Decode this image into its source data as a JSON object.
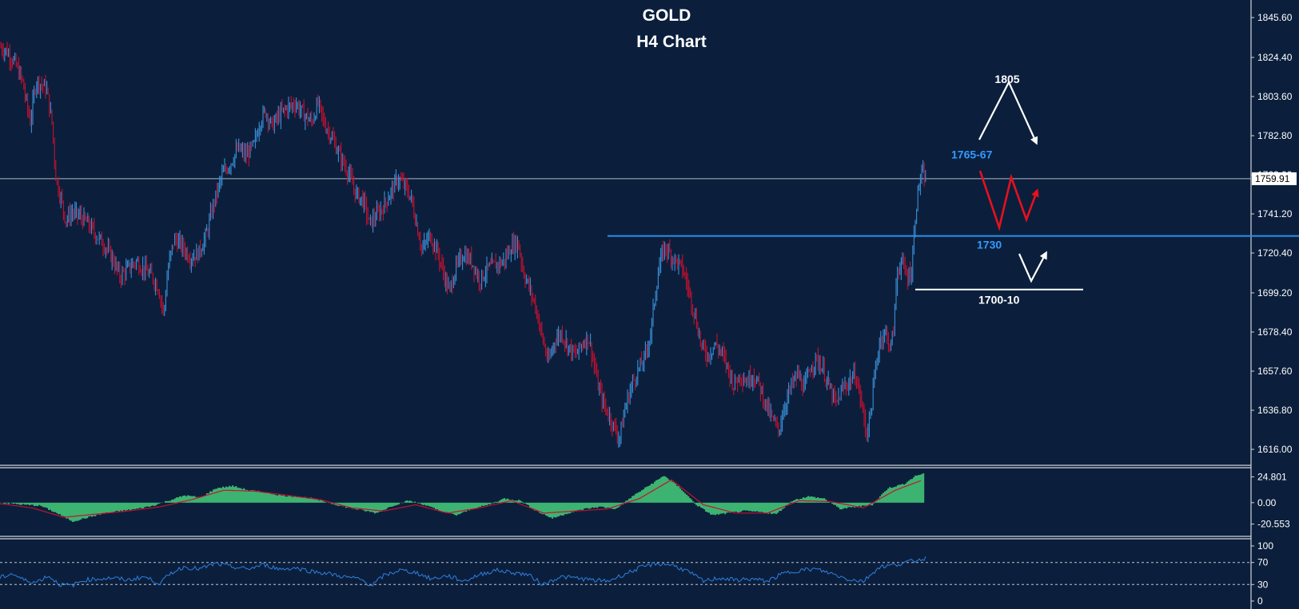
{
  "colors": {
    "background": "#0b1f3c",
    "bull": "#3a8fd6",
    "bear": "#c8102e",
    "grid_text": "#ffffff",
    "support_line": "#2f8fe8",
    "osc_fill": "#3cb371",
    "osc_signal": "#c8102e",
    "rsi_line": "#2f7fe0",
    "price_line": "#b0b8c4",
    "annotation_white": "#ffffff",
    "annotation_blue": "#3399ff",
    "annotation_red": "#e8101e"
  },
  "chart_data": [
    {
      "type": "candlestick",
      "title": "GOLD",
      "subtitle": "H4 Chart",
      "yticks": [
        "1845.60",
        "1824.40",
        "1803.60",
        "1782.80",
        "1762.00",
        "1741.20",
        "1720.40",
        "1699.20",
        "1678.40",
        "1657.60",
        "1636.80",
        "1616.00"
      ],
      "ylim": [
        1612,
        1850
      ],
      "current_price": "1759.91",
      "horizontal_levels": [
        {
          "label": "1730",
          "value": 1729.5
        },
        {
          "label": "1700-10",
          "value": 1701
        }
      ],
      "annotations": [
        {
          "label": "1805",
          "value": 1810
        },
        {
          "label": "1765-67",
          "value": 1774
        }
      ],
      "close_path": [
        [
          0,
          1830
        ],
        [
          8,
          1828
        ],
        [
          18,
          1822
        ],
        [
          28,
          1812
        ],
        [
          34,
          1798
        ],
        [
          38,
          1790
        ],
        [
          45,
          1812
        ],
        [
          52,
          1810
        ],
        [
          58,
          1808
        ],
        [
          65,
          1790
        ],
        [
          70,
          1760
        ],
        [
          76,
          1750
        ],
        [
          82,
          1738
        ],
        [
          90,
          1742
        ],
        [
          100,
          1740
        ],
        [
          110,
          1736
        ],
        [
          120,
          1730
        ],
        [
          130,
          1725
        ],
        [
          140,
          1718
        ],
        [
          150,
          1708
        ],
        [
          160,
          1712
        ],
        [
          170,
          1716
        ],
        [
          180,
          1712
        ],
        [
          190,
          1708
        ],
        [
          198,
          1702
        ],
        [
          205,
          1688
        ],
        [
          210,
          1712
        ],
        [
          218,
          1728
        ],
        [
          228,
          1724
        ],
        [
          238,
          1718
        ],
        [
          248,
          1720
        ],
        [
          258,
          1730
        ],
        [
          268,
          1748
        ],
        [
          278,
          1762
        ],
        [
          288,
          1768
        ],
        [
          298,
          1776
        ],
        [
          308,
          1772
        ],
        [
          318,
          1778
        ],
        [
          325,
          1790
        ],
        [
          332,
          1796
        ],
        [
          340,
          1788
        ],
        [
          350,
          1794
        ],
        [
          360,
          1798
        ],
        [
          370,
          1800
        ],
        [
          380,
          1794
        ],
        [
          390,
          1790
        ],
        [
          398,
          1800
        ],
        [
          405,
          1790
        ],
        [
          415,
          1782
        ],
        [
          425,
          1772
        ],
        [
          435,
          1764
        ],
        [
          445,
          1752
        ],
        [
          455,
          1748
        ],
        [
          462,
          1736
        ],
        [
          470,
          1740
        ],
        [
          478,
          1744
        ],
        [
          488,
          1752
        ],
        [
          498,
          1760
        ],
        [
          506,
          1756
        ],
        [
          514,
          1750
        ],
        [
          520,
          1738
        ],
        [
          528,
          1722
        ],
        [
          538,
          1730
        ],
        [
          548,
          1720
        ],
        [
          556,
          1708
        ],
        [
          562,
          1700
        ],
        [
          570,
          1712
        ],
        [
          580,
          1720
        ],
        [
          590,
          1716
        ],
        [
          600,
          1706
        ],
        [
          610,
          1712
        ],
        [
          620,
          1714
        ],
        [
          630,
          1716
        ],
        [
          640,
          1724
        ],
        [
          648,
          1726
        ],
        [
          655,
          1710
        ],
        [
          662,
          1702
        ],
        [
          670,
          1692
        ],
        [
          678,
          1676
        ],
        [
          686,
          1662
        ],
        [
          694,
          1674
        ],
        [
          702,
          1678
        ],
        [
          712,
          1670
        ],
        [
          720,
          1666
        ],
        [
          728,
          1672
        ],
        [
          736,
          1676
        ],
        [
          742,
          1664
        ],
        [
          748,
          1650
        ],
        [
          755,
          1640
        ],
        [
          762,
          1634
        ],
        [
          768,
          1628
        ],
        [
          775,
          1622
        ],
        [
          782,
          1638
        ],
        [
          790,
          1650
        ],
        [
          798,
          1658
        ],
        [
          806,
          1664
        ],
        [
          814,
          1678
        ],
        [
          820,
          1700
        ],
        [
          826,
          1716
        ],
        [
          832,
          1724
        ],
        [
          838,
          1720
        ],
        [
          846,
          1716
        ],
        [
          854,
          1712
        ],
        [
          862,
          1700
        ],
        [
          870,
          1686
        ],
        [
          878,
          1670
        ],
        [
          886,
          1666
        ],
        [
          894,
          1672
        ],
        [
          902,
          1668
        ],
        [
          910,
          1660
        ],
        [
          918,
          1650
        ],
        [
          926,
          1656
        ],
        [
          934,
          1652
        ],
        [
          942,
          1656
        ],
        [
          950,
          1650
        ],
        [
          958,
          1640
        ],
        [
          966,
          1632
        ],
        [
          974,
          1626
        ],
        [
          982,
          1640
        ],
        [
          990,
          1650
        ],
        [
          998,
          1656
        ],
        [
          1006,
          1648
        ],
        [
          1014,
          1660
        ],
        [
          1022,
          1664
        ],
        [
          1030,
          1658
        ],
        [
          1038,
          1648
        ],
        [
          1046,
          1640
        ],
        [
          1054,
          1648
        ],
        [
          1062,
          1652
        ],
        [
          1070,
          1656
        ],
        [
          1078,
          1640
        ],
        [
          1084,
          1624
        ],
        [
          1090,
          1638
        ],
        [
          1096,
          1662
        ],
        [
          1102,
          1676
        ],
        [
          1108,
          1678
        ],
        [
          1114,
          1670
        ],
        [
          1118,
          1680
        ],
        [
          1122,
          1710
        ],
        [
          1128,
          1716
        ],
        [
          1134,
          1708
        ],
        [
          1140,
          1710
        ],
        [
          1146,
          1745
        ],
        [
          1150,
          1758
        ],
        [
          1154,
          1762
        ],
        [
          1158,
          1760
        ]
      ]
    },
    {
      "type": "histogram",
      "name": "oscillator",
      "yticks": [
        "24.801",
        "0.00",
        "-20.553"
      ],
      "ylim": [
        -27,
        29
      ],
      "fill_path": [
        [
          0,
          0
        ],
        [
          30,
          -2
        ],
        [
          50,
          -3
        ],
        [
          70,
          -10
        ],
        [
          90,
          -18
        ],
        [
          110,
          -14
        ],
        [
          130,
          -10
        ],
        [
          150,
          -8
        ],
        [
          170,
          -6
        ],
        [
          190,
          -3
        ],
        [
          210,
          2
        ],
        [
          230,
          7
        ],
        [
          250,
          5
        ],
        [
          270,
          14
        ],
        [
          290,
          16
        ],
        [
          310,
          12
        ],
        [
          330,
          10
        ],
        [
          350,
          7
        ],
        [
          370,
          6
        ],
        [
          390,
          4
        ],
        [
          410,
          0
        ],
        [
          430,
          -4
        ],
        [
          450,
          -7
        ],
        [
          470,
          -10
        ],
        [
          490,
          -3
        ],
        [
          510,
          2
        ],
        [
          530,
          -2
        ],
        [
          550,
          -8
        ],
        [
          570,
          -12
        ],
        [
          590,
          -6
        ],
        [
          610,
          -2
        ],
        [
          630,
          4
        ],
        [
          650,
          2
        ],
        [
          670,
          -8
        ],
        [
          690,
          -15
        ],
        [
          710,
          -10
        ],
        [
          730,
          -6
        ],
        [
          750,
          -4
        ],
        [
          770,
          -6
        ],
        [
          790,
          6
        ],
        [
          810,
          16
        ],
        [
          830,
          26
        ],
        [
          850,
          14
        ],
        [
          870,
          -2
        ],
        [
          890,
          -12
        ],
        [
          910,
          -10
        ],
        [
          930,
          -8
        ],
        [
          950,
          -9
        ],
        [
          970,
          -11
        ],
        [
          990,
          2
        ],
        [
          1010,
          6
        ],
        [
          1030,
          4
        ],
        [
          1050,
          -6
        ],
        [
          1070,
          -4
        ],
        [
          1090,
          -2
        ],
        [
          1110,
          14
        ],
        [
          1130,
          18
        ],
        [
          1145,
          26
        ],
        [
          1155,
          28
        ]
      ],
      "signal_path": [
        [
          0,
          -1
        ],
        [
          40,
          -5
        ],
        [
          80,
          -14
        ],
        [
          120,
          -11
        ],
        [
          160,
          -8
        ],
        [
          200,
          -4
        ],
        [
          240,
          3
        ],
        [
          280,
          12
        ],
        [
          320,
          11
        ],
        [
          360,
          7
        ],
        [
          400,
          3
        ],
        [
          440,
          -5
        ],
        [
          480,
          -8
        ],
        [
          520,
          -2
        ],
        [
          560,
          -10
        ],
        [
          600,
          -5
        ],
        [
          640,
          2
        ],
        [
          680,
          -10
        ],
        [
          720,
          -8
        ],
        [
          760,
          -6
        ],
        [
          800,
          4
        ],
        [
          840,
          22
        ],
        [
          880,
          -2
        ],
        [
          920,
          -10
        ],
        [
          960,
          -10
        ],
        [
          1000,
          2
        ],
        [
          1040,
          1
        ],
        [
          1080,
          -5
        ],
        [
          1120,
          12
        ],
        [
          1155,
          22
        ]
      ]
    },
    {
      "type": "line",
      "name": "oscillator-2",
      "yticks": [
        "100",
        "70",
        "30",
        "0"
      ],
      "ylim": [
        0,
        100
      ],
      "levels": [
        70,
        30
      ],
      "line_path": [
        [
          0,
          42
        ],
        [
          15,
          50
        ],
        [
          30,
          38
        ],
        [
          45,
          34
        ],
        [
          60,
          46
        ],
        [
          75,
          30
        ],
        [
          90,
          28
        ],
        [
          105,
          38
        ],
        [
          120,
          40
        ],
        [
          140,
          42
        ],
        [
          160,
          38
        ],
        [
          180,
          44
        ],
        [
          200,
          32
        ],
        [
          215,
          52
        ],
        [
          230,
          62
        ],
        [
          250,
          58
        ],
        [
          270,
          68
        ],
        [
          290,
          62
        ],
        [
          310,
          58
        ],
        [
          330,
          66
        ],
        [
          350,
          58
        ],
        [
          370,
          60
        ],
        [
          390,
          54
        ],
        [
          410,
          50
        ],
        [
          430,
          44
        ],
        [
          450,
          40
        ],
        [
          465,
          28
        ],
        [
          480,
          46
        ],
        [
          500,
          56
        ],
        [
          520,
          52
        ],
        [
          540,
          40
        ],
        [
          560,
          46
        ],
        [
          580,
          36
        ],
        [
          600,
          48
        ],
        [
          620,
          56
        ],
        [
          640,
          52
        ],
        [
          660,
          48
        ],
        [
          680,
          30
        ],
        [
          700,
          44
        ],
        [
          720,
          42
        ],
        [
          740,
          38
        ],
        [
          760,
          36
        ],
        [
          780,
          48
        ],
        [
          800,
          60
        ],
        [
          820,
          68
        ],
        [
          840,
          66
        ],
        [
          860,
          54
        ],
        [
          880,
          36
        ],
        [
          900,
          42
        ],
        [
          920,
          38
        ],
        [
          940,
          40
        ],
        [
          960,
          36
        ],
        [
          980,
          50
        ],
        [
          1000,
          56
        ],
        [
          1020,
          58
        ],
        [
          1040,
          50
        ],
        [
          1060,
          40
        ],
        [
          1080,
          36
        ],
        [
          1100,
          62
        ],
        [
          1120,
          66
        ],
        [
          1140,
          72
        ],
        [
          1158,
          78
        ]
      ]
    }
  ]
}
